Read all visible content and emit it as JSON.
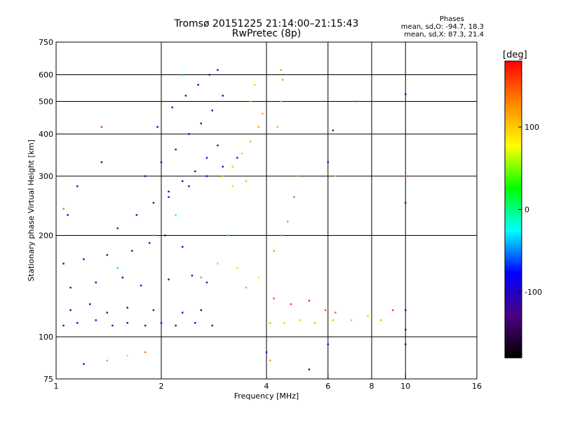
{
  "header": {
    "title_line1": "Tromsø 20151225 21:14:00–21:15:43",
    "title_line2": "RwPretec (8p)",
    "phases_label": "Phases",
    "phases_o": "mean, sd,O: -94.7, 18.3",
    "phases_x": "mean, sd,X: 87.3, 21.4"
  },
  "chart_data": {
    "type": "scatter",
    "title": "Tromsø 20151225 21:14:00–21:15:43",
    "subtitle": "RwPretec (8p)",
    "xlabel": "Frequency [MHz]",
    "ylabel": "Stationary phase Virtual Height [km]",
    "x_scale": "log",
    "y_scale": "log",
    "xlim": [
      1,
      16
    ],
    "ylim": [
      75,
      750
    ],
    "x_ticks": [
      1,
      2,
      4,
      6,
      8,
      10,
      16
    ],
    "y_ticks": [
      75,
      100,
      200,
      300,
      400,
      500,
      600,
      750
    ],
    "x_grid": [
      2,
      4,
      6,
      8,
      10
    ],
    "y_grid": [
      100,
      200,
      300,
      400,
      500,
      600
    ],
    "colorbar": {
      "label": "[deg]",
      "range": [
        -180,
        180
      ],
      "ticks": [
        100,
        0,
        -100
      ],
      "colormap": [
        "#000000",
        "#4b0082",
        "#0000ff",
        "#00ffff",
        "#00ff00",
        "#ffff00",
        "#ff8800",
        "#ff0000"
      ]
    },
    "series": [
      {
        "points": [
          [
            1.05,
            108,
            -110
          ],
          [
            1.15,
            110,
            -100
          ],
          [
            1.3,
            112,
            -105
          ],
          [
            1.45,
            108,
            -120
          ],
          [
            1.6,
            110,
            -95
          ],
          [
            1.8,
            108,
            -110
          ],
          [
            2.0,
            110,
            -100
          ],
          [
            2.2,
            108,
            -105
          ],
          [
            2.5,
            110,
            -90
          ],
          [
            2.8,
            108,
            -115
          ],
          [
            1.1,
            120,
            -110
          ],
          [
            1.25,
            125,
            -95
          ],
          [
            1.4,
            118,
            -100
          ],
          [
            1.6,
            122,
            -105
          ],
          [
            1.9,
            120,
            -110
          ],
          [
            2.3,
            118,
            -100
          ],
          [
            2.6,
            120,
            -95
          ],
          [
            1.1,
            140,
            -100
          ],
          [
            1.3,
            145,
            -110
          ],
          [
            1.55,
            150,
            -105
          ],
          [
            1.75,
            142,
            -95
          ],
          [
            2.1,
            148,
            -100
          ],
          [
            2.45,
            152,
            -110
          ],
          [
            2.7,
            145,
            -115
          ],
          [
            1.05,
            165,
            -100
          ],
          [
            1.2,
            170,
            -95
          ],
          [
            1.4,
            175,
            -110
          ],
          [
            1.65,
            180,
            -105
          ],
          [
            1.85,
            190,
            -100
          ],
          [
            2.05,
            200,
            -110
          ],
          [
            2.3,
            185,
            -95
          ],
          [
            1.5,
            210,
            -100
          ],
          [
            1.7,
            230,
            -110
          ],
          [
            1.9,
            250,
            -105
          ],
          [
            2.1,
            270,
            -95
          ],
          [
            2.3,
            290,
            -100
          ],
          [
            2.5,
            310,
            -110
          ],
          [
            2.7,
            340,
            -95
          ],
          [
            2.9,
            370,
            -100
          ],
          [
            1.8,
            300,
            -110
          ],
          [
            2.0,
            330,
            -105
          ],
          [
            2.2,
            360,
            -95
          ],
          [
            2.4,
            400,
            -100
          ],
          [
            2.6,
            430,
            -110
          ],
          [
            2.8,
            470,
            -105
          ],
          [
            3.0,
            520,
            -95
          ],
          [
            1.95,
            420,
            -105
          ],
          [
            2.15,
            480,
            -100
          ],
          [
            2.35,
            520,
            -110
          ],
          [
            2.55,
            560,
            -95
          ],
          [
            2.75,
            600,
            -100
          ],
          [
            2.9,
            620,
            -110
          ],
          [
            2.1,
            260,
            -100
          ],
          [
            2.4,
            280,
            -110
          ],
          [
            2.7,
            300,
            -95
          ],
          [
            3.0,
            320,
            -100
          ],
          [
            3.3,
            340,
            -105
          ]
        ]
      },
      {
        "points": [
          [
            3.0,
            300,
            110
          ],
          [
            3.2,
            320,
            105
          ],
          [
            3.4,
            350,
            100
          ],
          [
            3.6,
            380,
            115
          ],
          [
            3.2,
            280,
            95
          ],
          [
            3.5,
            290,
            110
          ],
          [
            3.8,
            420,
            120
          ],
          [
            3.9,
            460,
            115
          ],
          [
            3.6,
            500,
            105
          ],
          [
            3.7,
            560,
            100
          ],
          [
            4.1,
            110,
            110
          ],
          [
            4.5,
            110,
            105
          ],
          [
            5.0,
            112,
            100
          ],
          [
            5.5,
            110,
            115
          ],
          [
            6.2,
            112,
            110
          ],
          [
            7.0,
            112,
            105
          ],
          [
            7.8,
            115,
            100
          ],
          [
            8.5,
            112,
            110
          ],
          [
            4.2,
            180,
            120
          ],
          [
            4.4,
            200,
            130
          ],
          [
            4.6,
            220,
            125
          ],
          [
            4.8,
            260,
            135
          ],
          [
            4.9,
            300,
            120
          ],
          [
            4.3,
            420,
            115
          ],
          [
            4.4,
            500,
            110
          ],
          [
            4.45,
            580,
            125
          ],
          [
            4.4,
            620,
            120
          ],
          [
            3.3,
            160,
            60
          ],
          [
            3.5,
            140,
            40
          ],
          [
            3.8,
            150,
            70
          ],
          [
            2.6,
            150,
            30
          ],
          [
            2.9,
            165,
            55
          ],
          [
            4.2,
            130,
            150
          ],
          [
            4.7,
            125,
            160
          ],
          [
            5.3,
            128,
            170
          ],
          [
            5.9,
            120,
            155
          ],
          [
            6.3,
            118,
            145
          ],
          [
            1.9,
            200,
            20
          ],
          [
            1.5,
            160,
            0
          ],
          [
            2.2,
            230,
            -20
          ],
          [
            3.1,
            200,
            -10
          ]
        ]
      },
      {
        "points": [
          [
            2.3,
            600,
            -40
          ],
          [
            1.4,
            85,
            120
          ],
          [
            1.2,
            83,
            -100
          ],
          [
            1.6,
            88,
            60
          ],
          [
            1.8,
            90,
            140
          ],
          [
            4.0,
            90,
            -110
          ],
          [
            4.1,
            85,
            120
          ],
          [
            5.3,
            80,
            -100
          ],
          [
            6.0,
            95,
            -100
          ],
          [
            10.0,
            95,
            -110
          ],
          [
            10.0,
            105,
            -100
          ],
          [
            10.0,
            120,
            -95
          ],
          [
            10.0,
            250,
            -105
          ],
          [
            10.0,
            525,
            -100
          ],
          [
            10.0,
            610,
            140
          ],
          [
            10.0,
            300,
            150
          ],
          [
            6.0,
            330,
            -110
          ],
          [
            6.3,
            300,
            100
          ],
          [
            6.2,
            410,
            -120
          ],
          [
            7.2,
            500,
            150
          ],
          [
            9.2,
            120,
            160
          ],
          [
            1.08,
            230,
            -110
          ],
          [
            1.05,
            240,
            140
          ],
          [
            1.15,
            280,
            -100
          ],
          [
            1.35,
            330,
            -100
          ],
          [
            1.35,
            420,
            160
          ]
        ]
      }
    ]
  }
}
